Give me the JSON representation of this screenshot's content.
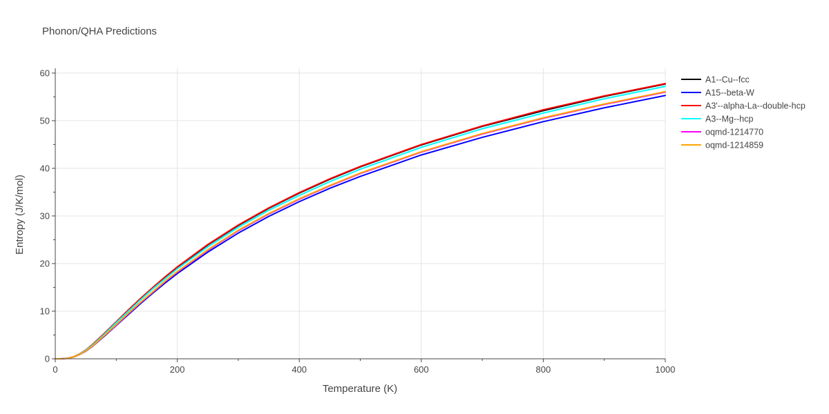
{
  "chart_data": {
    "type": "line",
    "title": "Phonon/QHA Predictions",
    "xlabel": "Temperature (K)",
    "ylabel": "Entropy (J/K/mol)",
    "xlim": [
      0,
      1000
    ],
    "ylim": [
      0,
      61
    ],
    "xticks": [
      0,
      200,
      400,
      600,
      800,
      1000
    ],
    "yticks": [
      0,
      10,
      20,
      30,
      40,
      50,
      60
    ],
    "grid": true,
    "legend_position": "right",
    "x": [
      0,
      10,
      20,
      30,
      40,
      50,
      60,
      80,
      100,
      120,
      140,
      160,
      180,
      200,
      250,
      300,
      350,
      400,
      450,
      500,
      600,
      700,
      800,
      900,
      1000
    ],
    "series": [
      {
        "name": "A1--Cu--fcc",
        "color": "#000000",
        "values": [
          0,
          0.01,
          0.1,
          0.4,
          1.0,
          1.8,
          2.8,
          5.2,
          7.7,
          10.2,
          12.6,
          14.9,
          17.1,
          19.2,
          23.9,
          28.0,
          31.6,
          34.8,
          37.7,
          40.3,
          44.9,
          48.8,
          52.1,
          55.1,
          57.7
        ]
      },
      {
        "name": "A15--beta-W",
        "color": "#0000ff",
        "values": [
          0,
          0.01,
          0.09,
          0.36,
          0.9,
          1.6,
          2.5,
          4.7,
          7.0,
          9.3,
          11.6,
          13.8,
          15.9,
          17.9,
          22.4,
          26.4,
          29.9,
          33.0,
          35.8,
          38.3,
          42.8,
          46.5,
          49.8,
          52.7,
          55.3
        ]
      },
      {
        "name": "A3'--alpha-La--double-hcp",
        "color": "#ff0000",
        "values": [
          0,
          0.01,
          0.1,
          0.42,
          1.02,
          1.85,
          2.9,
          5.3,
          7.8,
          10.3,
          12.7,
          15.0,
          17.2,
          19.3,
          24.0,
          28.1,
          31.7,
          34.9,
          37.8,
          40.4,
          45.0,
          48.9,
          52.3,
          55.2,
          57.8
        ]
      },
      {
        "name": "A3--Mg--hcp",
        "color": "#00ffff",
        "values": [
          0,
          0.01,
          0.1,
          0.4,
          0.98,
          1.78,
          2.75,
          5.1,
          7.6,
          10.0,
          12.4,
          14.7,
          16.8,
          18.9,
          23.5,
          27.6,
          31.2,
          34.3,
          37.2,
          39.8,
          44.4,
          48.3,
          51.6,
          54.6,
          57.2
        ]
      },
      {
        "name": "oqmd-1214770",
        "color": "#ff00ff",
        "values": [
          0,
          0.01,
          0.09,
          0.37,
          0.92,
          1.65,
          2.55,
          4.8,
          7.1,
          9.5,
          11.8,
          14.0,
          16.2,
          18.2,
          22.8,
          26.9,
          30.4,
          33.5,
          36.3,
          38.9,
          43.4,
          47.2,
          50.5,
          53.4,
          56.0
        ]
      },
      {
        "name": "oqmd-1214859",
        "color": "#ffa500",
        "values": [
          0,
          0.01,
          0.09,
          0.37,
          0.92,
          1.66,
          2.57,
          4.85,
          7.2,
          9.6,
          11.9,
          14.1,
          16.3,
          18.3,
          22.9,
          27.0,
          30.5,
          33.6,
          36.4,
          39.0,
          43.5,
          47.3,
          50.6,
          53.5,
          56.1
        ]
      }
    ]
  }
}
